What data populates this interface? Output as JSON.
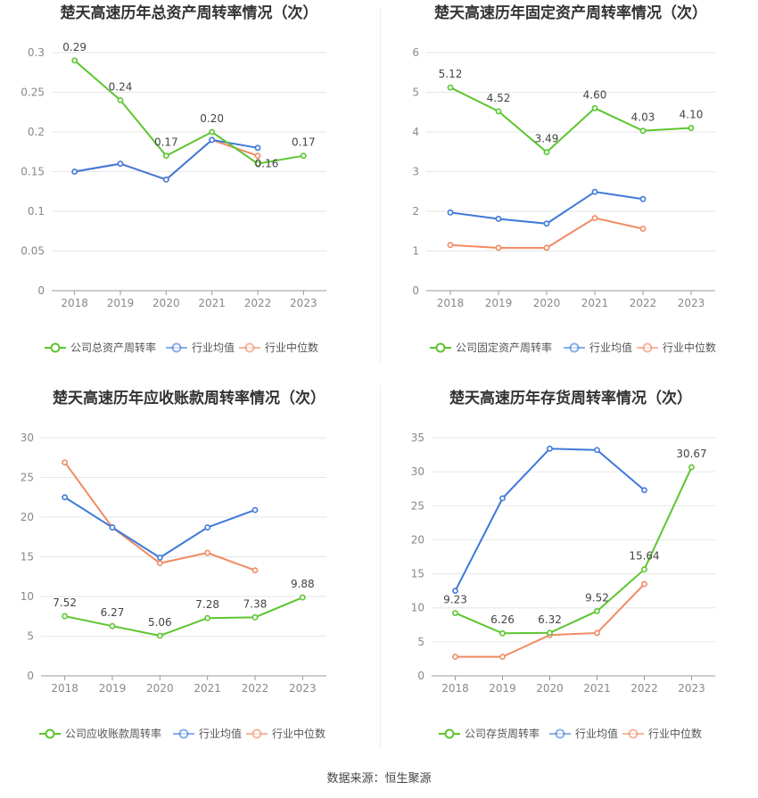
{
  "source_label": "数据来源：恒生聚源",
  "colors": {
    "company": "#5cc52e",
    "avg": "#3f79db",
    "median": "#f08a63",
    "grid": "#e6e6e6",
    "axis": "#999999",
    "tick_text": "#888888",
    "title": "#333333",
    "label": "#444444"
  },
  "chart_data": [
    {
      "type": "line",
      "title": "楚天高速历年总资产周转率情况（次）",
      "categories": [
        "2018",
        "2019",
        "2020",
        "2021",
        "2022",
        "2023"
      ],
      "ylim": [
        0,
        0.3
      ],
      "yticks": [
        "0",
        "0.05",
        "0.1",
        "0.15",
        "0.2",
        "0.25",
        "0.3"
      ],
      "series": [
        {
          "name": "公司总资产周转率",
          "key": "company",
          "values": [
            0.29,
            0.24,
            0.17,
            0.2,
            0.16,
            0.17
          ],
          "labels": [
            "0.29",
            "0.24",
            "0.17",
            "0.20",
            "0.16",
            "0.17"
          ]
        },
        {
          "name": "行业均值",
          "key": "avg",
          "values": [
            0.15,
            0.16,
            0.14,
            0.19,
            0.18,
            null
          ]
        },
        {
          "name": "行业中位数",
          "key": "median",
          "values": [
            0.15,
            0.16,
            0.14,
            0.19,
            0.17,
            null
          ]
        }
      ],
      "grid": true,
      "legend": "bottom"
    },
    {
      "type": "line",
      "title": "楚天高速历年固定资产周转率情况（次）",
      "categories": [
        "2018",
        "2019",
        "2020",
        "2021",
        "2022",
        "2023"
      ],
      "ylim": [
        0,
        6
      ],
      "yticks": [
        "0",
        "1",
        "2",
        "3",
        "4",
        "5",
        "6"
      ],
      "series": [
        {
          "name": "公司固定资产周转率",
          "key": "company",
          "values": [
            5.12,
            4.52,
            3.49,
            4.6,
            4.03,
            4.1
          ],
          "labels": [
            "5.12",
            "4.52",
            "3.49",
            "4.60",
            "4.03",
            "4.10"
          ]
        },
        {
          "name": "行业均值",
          "key": "avg",
          "values": [
            1.97,
            1.81,
            1.69,
            2.49,
            2.31,
            null
          ]
        },
        {
          "name": "行业中位数",
          "key": "median",
          "values": [
            1.15,
            1.08,
            1.08,
            1.83,
            1.56,
            null
          ]
        }
      ],
      "grid": true,
      "legend": "bottom"
    },
    {
      "type": "line",
      "title": "楚天高速历年应收账款周转率情况（次）",
      "categories": [
        "2018",
        "2019",
        "2020",
        "2021",
        "2022",
        "2023"
      ],
      "ylim": [
        0,
        30
      ],
      "yticks": [
        "0",
        "5",
        "10",
        "15",
        "20",
        "25",
        "30"
      ],
      "series": [
        {
          "name": "公司应收账款周转率",
          "key": "company",
          "values": [
            7.52,
            6.27,
            5.06,
            7.28,
            7.38,
            9.88
          ],
          "labels": [
            "7.52",
            "6.27",
            "5.06",
            "7.28",
            "7.38",
            "9.88"
          ]
        },
        {
          "name": "行业均值",
          "key": "avg",
          "values": [
            22.5,
            18.7,
            14.9,
            18.7,
            20.9,
            null
          ]
        },
        {
          "name": "行业中位数",
          "key": "median",
          "values": [
            26.9,
            18.7,
            14.2,
            15.5,
            13.3,
            null
          ]
        }
      ],
      "grid": true,
      "legend": "bottom"
    },
    {
      "type": "line",
      "title": "楚天高速历年存货周转率情况（次）",
      "categories": [
        "2018",
        "2019",
        "2020",
        "2021",
        "2022",
        "2023"
      ],
      "ylim": [
        0,
        35
      ],
      "yticks": [
        "0",
        "5",
        "10",
        "15",
        "20",
        "25",
        "30",
        "35"
      ],
      "series": [
        {
          "name": "公司存货周转率",
          "key": "company",
          "values": [
            9.23,
            6.26,
            6.32,
            9.52,
            15.64,
            30.67
          ],
          "labels": [
            "9.23",
            "6.26",
            "6.32",
            "9.52",
            "15.64",
            "30.67"
          ]
        },
        {
          "name": "行业均值",
          "key": "avg",
          "values": [
            12.5,
            26.1,
            33.4,
            33.2,
            27.3,
            null
          ]
        },
        {
          "name": "行业中位数",
          "key": "median",
          "values": [
            2.8,
            2.8,
            6.0,
            6.3,
            13.5,
            null
          ]
        }
      ],
      "grid": true,
      "legend": "bottom"
    }
  ]
}
